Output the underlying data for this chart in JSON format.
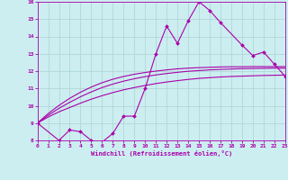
{
  "xlabel": "Windchill (Refroidissement éolien,°C)",
  "xlim": [
    0,
    23
  ],
  "ylim": [
    8,
    16
  ],
  "xticks": [
    0,
    1,
    2,
    3,
    4,
    5,
    6,
    7,
    8,
    9,
    10,
    11,
    12,
    13,
    14,
    15,
    16,
    17,
    18,
    19,
    20,
    21,
    22,
    23
  ],
  "yticks": [
    8,
    9,
    10,
    11,
    12,
    13,
    14,
    15,
    16
  ],
  "bg_color": "#cceef0",
  "line_color": "#aa00aa",
  "grid_color": "#b0d8d8",
  "smooth_lines": [
    {
      "x": [
        0,
        1,
        2,
        3,
        4,
        5,
        6,
        7,
        8,
        9,
        10,
        11,
        12,
        13,
        14,
        15,
        16,
        17,
        18,
        19,
        20,
        21,
        22,
        23
      ],
      "y": [
        9.0,
        9.35,
        9.65,
        9.9,
        10.15,
        10.38,
        10.58,
        10.76,
        10.92,
        11.05,
        11.17,
        11.28,
        11.37,
        11.45,
        11.52,
        11.58,
        11.62,
        11.66,
        11.69,
        11.71,
        11.73,
        11.75,
        11.76,
        11.77
      ]
    },
    {
      "x": [
        0,
        1,
        2,
        3,
        4,
        5,
        6,
        7,
        8,
        9,
        10,
        11,
        12,
        13,
        14,
        15,
        16,
        17,
        18,
        19,
        20,
        21,
        22,
        23
      ],
      "y": [
        9.0,
        9.45,
        9.85,
        10.2,
        10.52,
        10.8,
        11.05,
        11.25,
        11.42,
        11.56,
        11.68,
        11.78,
        11.86,
        11.93,
        11.99,
        12.03,
        12.07,
        12.1,
        12.12,
        12.14,
        12.15,
        12.16,
        12.17,
        12.17
      ]
    },
    {
      "x": [
        0,
        1,
        2,
        3,
        4,
        5,
        6,
        7,
        8,
        9,
        10,
        11,
        12,
        13,
        14,
        15,
        16,
        17,
        18,
        19,
        20,
        21,
        22,
        23
      ],
      "y": [
        9.0,
        9.55,
        10.02,
        10.43,
        10.78,
        11.08,
        11.33,
        11.53,
        11.69,
        11.82,
        11.92,
        12.0,
        12.07,
        12.13,
        12.17,
        12.2,
        12.22,
        12.24,
        12.25,
        12.25,
        12.26,
        12.26,
        12.26,
        12.26
      ]
    }
  ],
  "marker_line": {
    "x": [
      0,
      2,
      3,
      4,
      5,
      6,
      7,
      8,
      9,
      10,
      11,
      12,
      13,
      14,
      15,
      16,
      17,
      19,
      20,
      21,
      22,
      23
    ],
    "y": [
      9.0,
      8.0,
      8.6,
      8.5,
      8.0,
      7.9,
      8.4,
      9.4,
      9.4,
      11.0,
      13.0,
      14.6,
      13.6,
      14.9,
      16.0,
      15.5,
      14.8,
      13.5,
      12.9,
      13.1,
      12.4,
      11.7
    ]
  }
}
